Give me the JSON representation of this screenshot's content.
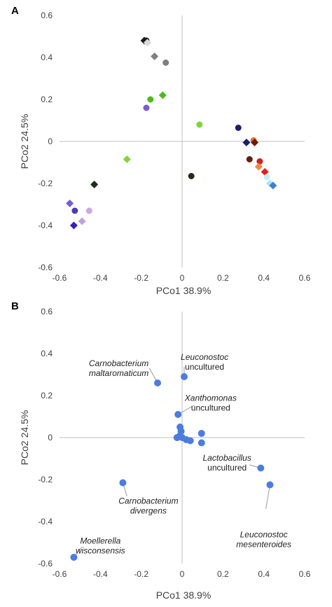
{
  "chart_data": [
    {
      "type": "scatter",
      "panel_label": "A",
      "xlabel": "PCo1 38.9%",
      "ylabel": "PCo2 24.5%",
      "xlim": [
        -0.6,
        0.6
      ],
      "ylim": [
        -0.6,
        0.6
      ],
      "xticks": [
        "-0.6",
        "-0.4",
        "-0.2",
        "0",
        "0.2",
        "0.4",
        "0.6"
      ],
      "yticks": [
        "0.6",
        "0.4",
        "0.2",
        "0",
        "-0.2",
        "-0.4",
        "-0.6"
      ],
      "grid": false,
      "points": [
        {
          "x": -0.185,
          "y": 0.48,
          "shape": "diamond",
          "color": "#1a1a1a"
        },
        {
          "x": -0.175,
          "y": 0.48,
          "shape": "circle",
          "color": "#1a1a1a"
        },
        {
          "x": -0.17,
          "y": 0.47,
          "shape": "diamond",
          "color": "#d9d9d9"
        },
        {
          "x": -0.135,
          "y": 0.405,
          "shape": "diamond",
          "color": "#7f7f7f"
        },
        {
          "x": -0.08,
          "y": 0.375,
          "shape": "circle",
          "color": "#7f7f7f"
        },
        {
          "x": -0.155,
          "y": 0.2,
          "shape": "circle",
          "color": "#4cbb17"
        },
        {
          "x": -0.095,
          "y": 0.22,
          "shape": "diamond",
          "color": "#4cbb17"
        },
        {
          "x": -0.175,
          "y": 0.16,
          "shape": "circle",
          "color": "#7a5ccf"
        },
        {
          "x": 0.085,
          "y": 0.08,
          "shape": "circle",
          "color": "#7dd63a"
        },
        {
          "x": -0.27,
          "y": -0.085,
          "shape": "diamond",
          "color": "#7dd63a"
        },
        {
          "x": 0.045,
          "y": -0.165,
          "shape": "circle",
          "color": "#1f2d1a"
        },
        {
          "x": -0.43,
          "y": -0.205,
          "shape": "diamond",
          "color": "#1f2d1a"
        },
        {
          "x": 0.275,
          "y": 0.065,
          "shape": "circle",
          "color": "#1b1f6b"
        },
        {
          "x": 0.315,
          "y": -0.005,
          "shape": "diamond",
          "color": "#1b1f6b"
        },
        {
          "x": 0.35,
          "y": 0.005,
          "shape": "circle",
          "color": "#e8761a"
        },
        {
          "x": 0.355,
          "y": -0.005,
          "shape": "diamond",
          "color": "#6b1a0f"
        },
        {
          "x": 0.33,
          "y": -0.085,
          "shape": "circle",
          "color": "#6b1a0f"
        },
        {
          "x": 0.38,
          "y": -0.095,
          "shape": "circle",
          "color": "#cc2222"
        },
        {
          "x": 0.375,
          "y": -0.12,
          "shape": "diamond",
          "color": "#f08a3c"
        },
        {
          "x": 0.405,
          "y": -0.145,
          "shape": "diamond",
          "color": "#e02020"
        },
        {
          "x": 0.415,
          "y": -0.17,
          "shape": "circle",
          "color": "#c9ecf7"
        },
        {
          "x": 0.43,
          "y": -0.2,
          "shape": "diamond",
          "color": "#aee4f5"
        },
        {
          "x": 0.445,
          "y": -0.21,
          "shape": "diamond",
          "color": "#3e7fd6"
        },
        {
          "x": -0.55,
          "y": -0.295,
          "shape": "diamond",
          "color": "#7a5ccf"
        },
        {
          "x": -0.525,
          "y": -0.33,
          "shape": "circle",
          "color": "#4b3bb8"
        },
        {
          "x": -0.455,
          "y": -0.33,
          "shape": "circle",
          "color": "#c8a8e8"
        },
        {
          "x": -0.49,
          "y": -0.38,
          "shape": "diamond",
          "color": "#b9a4e3"
        },
        {
          "x": -0.53,
          "y": -0.4,
          "shape": "diamond",
          "color": "#3a1fb0"
        }
      ]
    },
    {
      "type": "scatter",
      "panel_label": "B",
      "xlabel": "PCo1 38.9%",
      "ylabel": "PCo2 24.5%",
      "xlim": [
        -0.6,
        0.6
      ],
      "ylim": [
        -0.6,
        0.6
      ],
      "xticks": [
        "-0.6",
        "-0.4",
        "-0.2",
        "0",
        "0.2",
        "0.4",
        "0.6"
      ],
      "yticks": [
        "0.6",
        "0.4",
        "0.2",
        "0",
        "-0.2",
        "-0.4",
        "-0.6"
      ],
      "grid": false,
      "point_color": "#4a7de0",
      "points": [
        {
          "x": -0.12,
          "y": 0.26
        },
        {
          "x": 0.01,
          "y": 0.29
        },
        {
          "x": -0.02,
          "y": 0.11
        },
        {
          "x": -0.01,
          "y": 0.05
        },
        {
          "x": -0.005,
          "y": 0.03
        },
        {
          "x": -0.01,
          "y": 0.01
        },
        {
          "x": 0.0,
          "y": 0.0
        },
        {
          "x": -0.025,
          "y": 0.0
        },
        {
          "x": 0.02,
          "y": -0.01
        },
        {
          "x": 0.04,
          "y": -0.015
        },
        {
          "x": 0.095,
          "y": 0.02
        },
        {
          "x": 0.095,
          "y": -0.025
        },
        {
          "x": 0.385,
          "y": -0.145
        },
        {
          "x": 0.43,
          "y": -0.225
        },
        {
          "x": -0.29,
          "y": -0.215
        },
        {
          "x": -0.53,
          "y": -0.57
        }
      ],
      "annotations": [
        {
          "lines": [
            "Carnobacterium",
            "maltaromaticum"
          ],
          "italic": [
            true,
            true
          ],
          "point": [
            -0.12,
            0.26
          ],
          "text_at": [
            -0.31,
            0.34
          ],
          "anchor": "middle",
          "elbow": [
            -0.16,
            0.33
          ]
        },
        {
          "lines": [
            "Leuconostoc",
            "uncultured"
          ],
          "italic": [
            true,
            false
          ],
          "point": [
            0.01,
            0.29
          ],
          "text_at": [
            0.11,
            0.37
          ],
          "anchor": "middle",
          "elbow": null
        },
        {
          "lines": [
            "Xanthomonas",
            "uncultured"
          ],
          "italic": [
            true,
            false
          ],
          "point": [
            -0.02,
            0.11
          ],
          "text_at": [
            0.14,
            0.175
          ],
          "anchor": "middle",
          "elbow": [
            0.06,
            0.155
          ]
        },
        {
          "lines": [
            "Lactobacillus",
            "uncultured"
          ],
          "italic": [
            true,
            false
          ],
          "point": [
            0.385,
            -0.145
          ],
          "text_at": [
            0.22,
            -0.11
          ],
          "anchor": "middle",
          "elbow": [
            0.33,
            -0.13
          ]
        },
        {
          "lines": [
            "Carnobacterium",
            "divergens"
          ],
          "italic": [
            true,
            true
          ],
          "point": [
            -0.29,
            -0.215
          ],
          "text_at": [
            -0.165,
            -0.315
          ],
          "anchor": "middle",
          "elbow": [
            -0.27,
            -0.28
          ]
        },
        {
          "lines": [
            "Leuconostoc",
            "mesenteroides"
          ],
          "italic": [
            true,
            true
          ],
          "point": [
            0.43,
            -0.225
          ],
          "text_at": [
            0.4,
            -0.475
          ],
          "anchor": "middle",
          "elbow": [
            0.41,
            -0.34
          ]
        },
        {
          "lines": [
            "Moellerella",
            "wisconsensis"
          ],
          "italic": [
            true,
            true
          ],
          "point": [
            -0.53,
            -0.57
          ],
          "text_at": [
            -0.4,
            -0.505
          ],
          "anchor": "middle",
          "elbow": [
            -0.49,
            -0.52
          ]
        }
      ]
    }
  ]
}
